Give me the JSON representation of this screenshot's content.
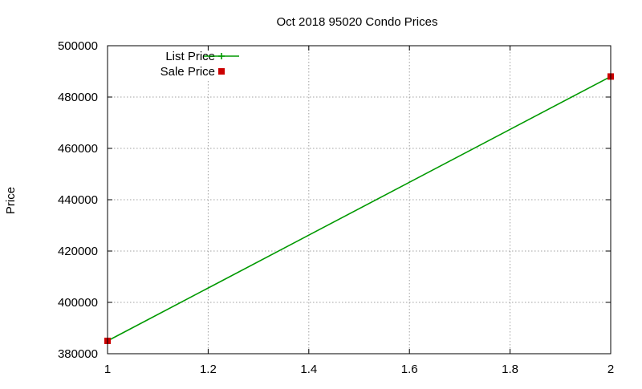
{
  "chart_data": {
    "type": "line",
    "title": "Oct 2018 95020 Condo Prices",
    "xlabel": "",
    "ylabel": "Price",
    "xlim": [
      1,
      2
    ],
    "ylim": [
      380000,
      500000
    ],
    "xticks": [
      1,
      1.2,
      1.4,
      1.6,
      1.8,
      2
    ],
    "xtick_labels": [
      "1",
      "1.2",
      "1.4",
      "1.6",
      "1.8",
      "2"
    ],
    "yticks": [
      380000,
      400000,
      420000,
      440000,
      460000,
      480000,
      500000
    ],
    "ytick_labels": [
      "380000",
      "400000",
      "420000",
      "440000",
      "460000",
      "480000",
      "500000"
    ],
    "grid": true,
    "legend_position": "top-left",
    "series": [
      {
        "name": "List Price",
        "style": "line-with-plus-markers",
        "color": "#009900",
        "x": [
          1,
          2
        ],
        "y": [
          385000,
          488000
        ]
      },
      {
        "name": "Sale Price",
        "style": "square-markers",
        "color": "#cc0000",
        "x": [
          1,
          2
        ],
        "y": [
          385000,
          488000
        ]
      }
    ]
  }
}
